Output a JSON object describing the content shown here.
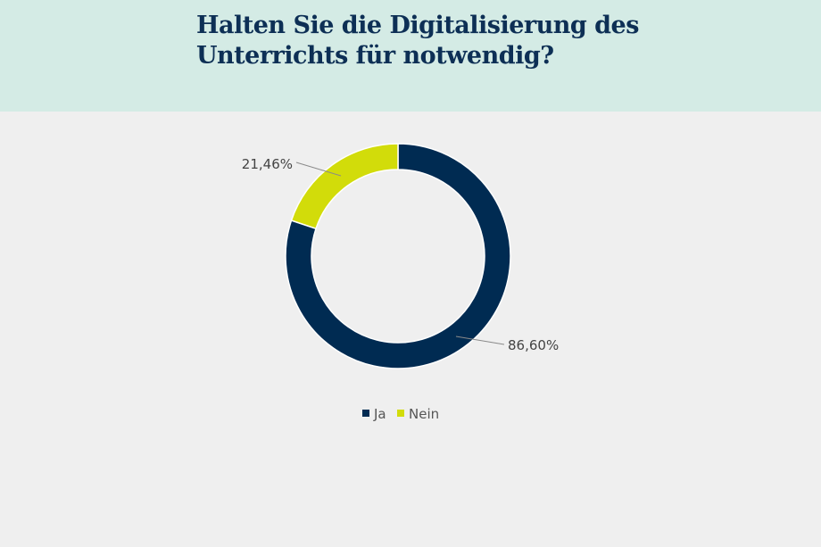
{
  "header": {
    "title": "Halten Sie die Digitalisierung des Unterrichts für notwendig?"
  },
  "chart_data": {
    "type": "pie",
    "subtype": "donut",
    "title": "Halten Sie die Digitalisierung des Unterrichts für notwendig?",
    "categories": [
      "Ja",
      "Nein"
    ],
    "values": [
      86.6,
      21.46
    ],
    "data_labels": [
      "86,60%",
      "21,46%"
    ],
    "colors": [
      "#002b52",
      "#d2dc0a"
    ],
    "legend": {
      "position": "bottom",
      "entries": [
        "Ja",
        "Nein"
      ]
    }
  }
}
